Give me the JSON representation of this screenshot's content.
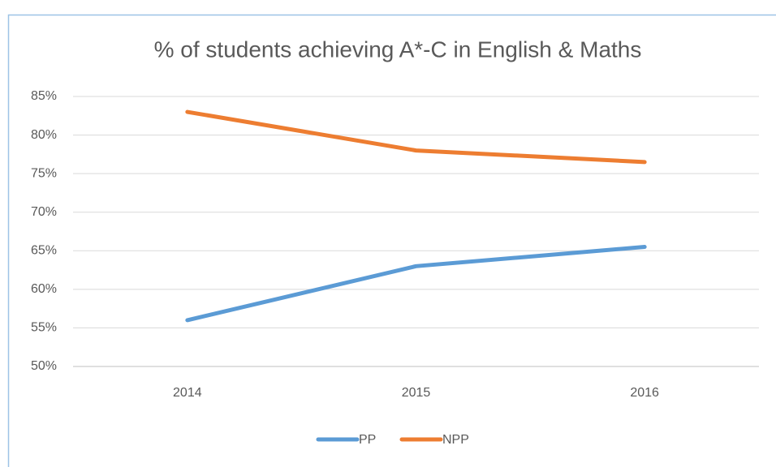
{
  "chart_data": {
    "type": "line",
    "title": "% of students achieving A*-C in English & Maths",
    "categories": [
      "2014",
      "2015",
      "2016"
    ],
    "series": [
      {
        "name": "PP",
        "color": "#5b9bd5",
        "values": [
          56,
          63,
          65.5
        ]
      },
      {
        "name": "NPP",
        "color": "#ed7d31",
        "values": [
          83,
          78,
          76.5
        ]
      }
    ],
    "ylim": [
      50,
      85
    ],
    "yticks": [
      {
        "value": 50,
        "label": "50%"
      },
      {
        "value": 55,
        "label": "55%"
      },
      {
        "value": 60,
        "label": "60%"
      },
      {
        "value": 65,
        "label": "65%"
      },
      {
        "value": 70,
        "label": "70%"
      },
      {
        "value": 75,
        "label": "75%"
      },
      {
        "value": 80,
        "label": "80%"
      },
      {
        "value": 85,
        "label": "85%"
      }
    ],
    "grid": true,
    "legend": "bottom"
  }
}
